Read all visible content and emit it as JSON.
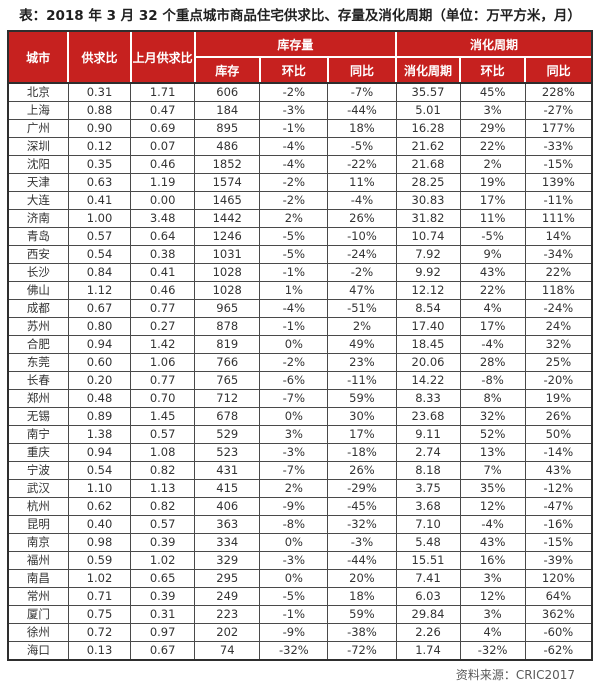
{
  "colors": {
    "header_bg": "#c6211f",
    "header_text": "#ffffff",
    "border_dark": "#2e2e2e",
    "body_text": "#333333"
  },
  "chart_data": {
    "type": "table",
    "title": "表：2018 年 3 月 32 个重点城市商品住宅供求比、存量及消化周期（单位：万平方米，月）",
    "source": "资料来源：CRIC2017",
    "header_groups": {
      "city": "城市",
      "supply_demand_ratio": "供求比",
      "last_month_ratio": "上月供求比",
      "inventory_group": "库存量",
      "digestion_group": "消化周期"
    },
    "sub_headers": {
      "inventory": "库存",
      "inventory_mom": "环比",
      "inventory_yoy": "同比",
      "digestion_period": "消化周期",
      "digestion_mom": "环比",
      "digestion_yoy": "同比"
    },
    "columns": [
      "城市",
      "供求比",
      "上月供求比",
      "库存量-库存",
      "库存量-环比",
      "库存量-同比",
      "消化周期-消化周期",
      "消化周期-环比",
      "消化周期-同比"
    ],
    "rows": [
      [
        "北京",
        "0.31",
        "1.71",
        "606",
        "-2%",
        "-7%",
        "35.57",
        "45%",
        "228%"
      ],
      [
        "上海",
        "0.88",
        "0.47",
        "184",
        "-3%",
        "-44%",
        "5.01",
        "3%",
        "-27%"
      ],
      [
        "广州",
        "0.90",
        "0.69",
        "895",
        "-1%",
        "18%",
        "16.28",
        "29%",
        "177%"
      ],
      [
        "深圳",
        "0.12",
        "0.07",
        "486",
        "-4%",
        "-5%",
        "21.62",
        "22%",
        "-33%"
      ],
      [
        "沈阳",
        "0.35",
        "0.46",
        "1852",
        "-4%",
        "-22%",
        "21.68",
        "2%",
        "-15%"
      ],
      [
        "天津",
        "0.63",
        "1.19",
        "1574",
        "-2%",
        "11%",
        "28.25",
        "19%",
        "139%"
      ],
      [
        "大连",
        "0.41",
        "0.00",
        "1465",
        "-2%",
        "-4%",
        "30.83",
        "17%",
        "-11%"
      ],
      [
        "济南",
        "1.00",
        "3.48",
        "1442",
        "2%",
        "26%",
        "31.82",
        "11%",
        "111%"
      ],
      [
        "青岛",
        "0.57",
        "0.64",
        "1246",
        "-5%",
        "-10%",
        "10.74",
        "-5%",
        "14%"
      ],
      [
        "西安",
        "0.54",
        "0.38",
        "1031",
        "-5%",
        "-24%",
        "7.92",
        "9%",
        "-34%"
      ],
      [
        "长沙",
        "0.84",
        "0.41",
        "1028",
        "-1%",
        "-2%",
        "9.92",
        "43%",
        "22%"
      ],
      [
        "佛山",
        "1.12",
        "0.46",
        "1028",
        "1%",
        "47%",
        "12.12",
        "22%",
        "118%"
      ],
      [
        "成都",
        "0.67",
        "0.77",
        "965",
        "-4%",
        "-51%",
        "8.54",
        "4%",
        "-24%"
      ],
      [
        "苏州",
        "0.80",
        "0.27",
        "878",
        "-1%",
        "2%",
        "17.40",
        "17%",
        "24%"
      ],
      [
        "合肥",
        "0.94",
        "1.42",
        "819",
        "0%",
        "49%",
        "18.45",
        "-4%",
        "32%"
      ],
      [
        "东莞",
        "0.60",
        "1.06",
        "766",
        "-2%",
        "23%",
        "20.06",
        "28%",
        "25%"
      ],
      [
        "长春",
        "0.20",
        "0.77",
        "765",
        "-6%",
        "-11%",
        "14.22",
        "-8%",
        "-20%"
      ],
      [
        "郑州",
        "0.48",
        "0.70",
        "712",
        "-7%",
        "59%",
        "8.33",
        "8%",
        "19%"
      ],
      [
        "无锡",
        "0.89",
        "1.45",
        "678",
        "0%",
        "30%",
        "23.68",
        "32%",
        "26%"
      ],
      [
        "南宁",
        "1.38",
        "0.57",
        "529",
        "3%",
        "17%",
        "9.11",
        "52%",
        "50%"
      ],
      [
        "重庆",
        "0.94",
        "1.08",
        "523",
        "-3%",
        "-18%",
        "2.74",
        "13%",
        "-14%"
      ],
      [
        "宁波",
        "0.54",
        "0.82",
        "431",
        "-7%",
        "26%",
        "8.18",
        "7%",
        "43%"
      ],
      [
        "武汉",
        "1.10",
        "1.13",
        "415",
        "2%",
        "-29%",
        "3.75",
        "35%",
        "-12%"
      ],
      [
        "杭州",
        "0.62",
        "0.82",
        "406",
        "-9%",
        "-45%",
        "3.68",
        "12%",
        "-47%"
      ],
      [
        "昆明",
        "0.40",
        "0.57",
        "363",
        "-8%",
        "-32%",
        "7.10",
        "-4%",
        "-16%"
      ],
      [
        "南京",
        "0.98",
        "0.39",
        "334",
        "0%",
        "-3%",
        "5.48",
        "43%",
        "-15%"
      ],
      [
        "福州",
        "0.59",
        "1.02",
        "329",
        "-3%",
        "-44%",
        "15.51",
        "16%",
        "-39%"
      ],
      [
        "南昌",
        "1.02",
        "0.65",
        "295",
        "0%",
        "20%",
        "7.41",
        "3%",
        "120%"
      ],
      [
        "常州",
        "0.71",
        "0.39",
        "249",
        "-5%",
        "18%",
        "6.03",
        "12%",
        "64%"
      ],
      [
        "厦门",
        "0.75",
        "0.31",
        "223",
        "-1%",
        "59%",
        "29.84",
        "3%",
        "362%"
      ],
      [
        "徐州",
        "0.72",
        "0.97",
        "202",
        "-9%",
        "-38%",
        "2.26",
        "4%",
        "-60%"
      ],
      [
        "海口",
        "0.13",
        "0.67",
        "74",
        "-32%",
        "-72%",
        "1.74",
        "-32%",
        "-62%"
      ]
    ]
  }
}
